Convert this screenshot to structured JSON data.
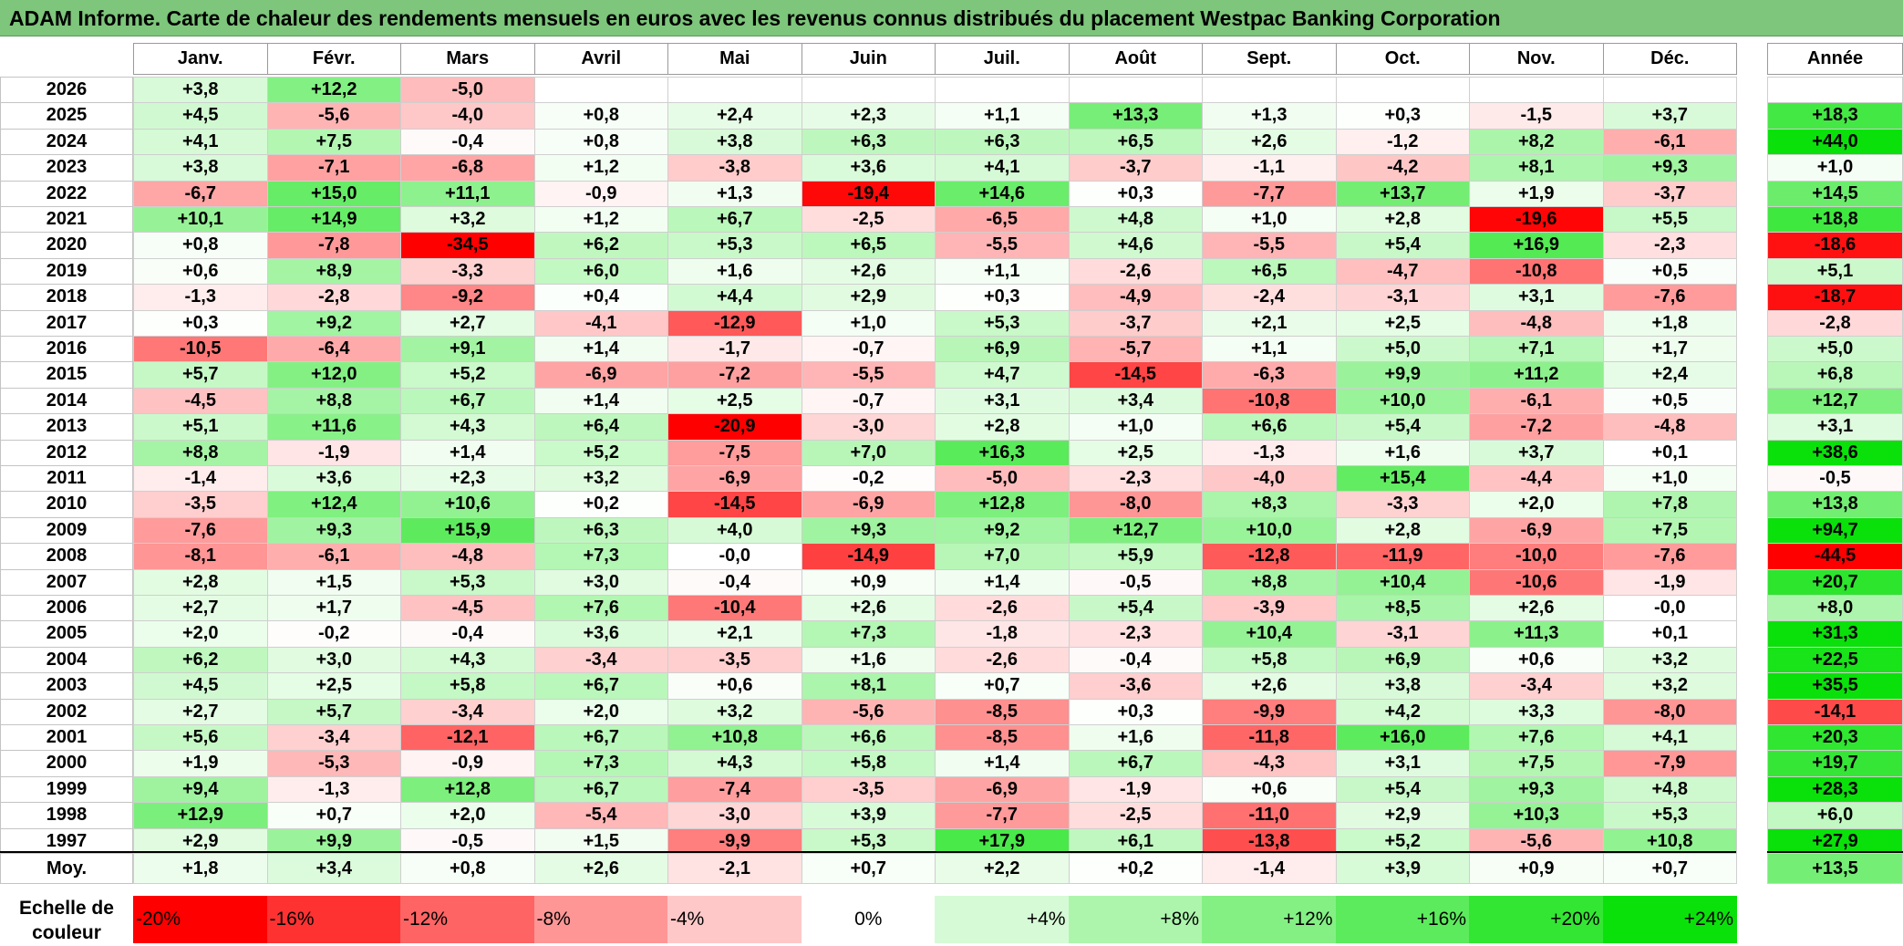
{
  "title": "ADAM Informe. Carte de chaleur des rendements mensuels en euros avec les revenus connus distribués du placement Westpac Banking Corporation",
  "chart_data": {
    "type": "heatmap",
    "title": "ADAM Informe. Carte de chaleur des rendements mensuels en euros avec les revenus connus distribués du placement Westpac Banking Corporation",
    "months": [
      "Janv.",
      "Févr.",
      "Mars",
      "Avril",
      "Mai",
      "Juin",
      "Juil.",
      "Août",
      "Sept.",
      "Oct.",
      "Nov.",
      "Déc."
    ],
    "year_header": "Année",
    "years": [
      "2026",
      "2025",
      "2024",
      "2023",
      "2022",
      "2021",
      "2020",
      "2019",
      "2018",
      "2017",
      "2016",
      "2015",
      "2014",
      "2013",
      "2012",
      "2011",
      "2010",
      "2009",
      "2008",
      "2007",
      "2006",
      "2005",
      "2004",
      "2003",
      "2002",
      "2001",
      "2000",
      "1999",
      "1998",
      "1997"
    ],
    "values": [
      [
        "+3,8",
        "+12,2",
        "-5,0",
        "",
        "",
        "",
        "",
        "",
        "",
        "",
        "",
        ""
      ],
      [
        "+4,5",
        "-5,6",
        "-4,0",
        "+0,8",
        "+2,4",
        "+2,3",
        "+1,1",
        "+13,3",
        "+1,3",
        "+0,3",
        "-1,5",
        "+3,7"
      ],
      [
        "+4,1",
        "+7,5",
        "-0,4",
        "+0,8",
        "+3,8",
        "+6,3",
        "+6,3",
        "+6,5",
        "+2,6",
        "-1,2",
        "+8,2",
        "-6,1"
      ],
      [
        "+3,8",
        "-7,1",
        "-6,8",
        "+1,2",
        "-3,8",
        "+3,6",
        "+4,1",
        "-3,7",
        "-1,1",
        "-4,2",
        "+8,1",
        "+9,3"
      ],
      [
        "-6,7",
        "+15,0",
        "+11,1",
        "-0,9",
        "+1,3",
        "-19,4",
        "+14,6",
        "+0,3",
        "-7,7",
        "+13,7",
        "+1,9",
        "-3,7"
      ],
      [
        "+10,1",
        "+14,9",
        "+3,2",
        "+1,2",
        "+6,7",
        "-2,5",
        "-6,5",
        "+4,8",
        "+1,0",
        "+2,8",
        "-19,6",
        "+5,5"
      ],
      [
        "+0,8",
        "-7,8",
        "-34,5",
        "+6,2",
        "+5,3",
        "+6,5",
        "-5,5",
        "+4,6",
        "-5,5",
        "+5,4",
        "+16,9",
        "-2,3"
      ],
      [
        "+0,6",
        "+8,9",
        "-3,3",
        "+6,0",
        "+1,6",
        "+2,6",
        "+1,1",
        "-2,6",
        "+6,5",
        "-4,7",
        "-10,8",
        "+0,5"
      ],
      [
        "-1,3",
        "-2,8",
        "-9,2",
        "+0,4",
        "+4,4",
        "+2,9",
        "+0,3",
        "-4,9",
        "-2,4",
        "-3,1",
        "+3,1",
        "-7,6"
      ],
      [
        "+0,3",
        "+9,2",
        "+2,7",
        "-4,1",
        "-12,9",
        "+1,0",
        "+5,3",
        "-3,7",
        "+2,1",
        "+2,5",
        "-4,8",
        "+1,8"
      ],
      [
        "-10,5",
        "-6,4",
        "+9,1",
        "+1,4",
        "-1,7",
        "-0,7",
        "+6,9",
        "-5,7",
        "+1,1",
        "+5,0",
        "+7,1",
        "+1,7"
      ],
      [
        "+5,7",
        "+12,0",
        "+5,2",
        "-6,9",
        "-7,2",
        "-5,5",
        "+4,7",
        "-14,5",
        "-6,3",
        "+9,9",
        "+11,2",
        "+2,4"
      ],
      [
        "-4,5",
        "+8,8",
        "+6,7",
        "+1,4",
        "+2,5",
        "-0,7",
        "+3,1",
        "+3,4",
        "-10,8",
        "+10,0",
        "-6,1",
        "+0,5"
      ],
      [
        "+5,1",
        "+11,6",
        "+4,3",
        "+6,4",
        "-20,9",
        "-3,0",
        "+2,8",
        "+1,0",
        "+6,6",
        "+5,4",
        "-7,2",
        "-4,8"
      ],
      [
        "+8,8",
        "-1,9",
        "+1,4",
        "+5,2",
        "-7,5",
        "+7,0",
        "+16,3",
        "+2,5",
        "-1,3",
        "+1,6",
        "+3,7",
        "+0,1"
      ],
      [
        "-1,4",
        "+3,6",
        "+2,3",
        "+3,2",
        "-6,9",
        "-0,2",
        "-5,0",
        "-2,3",
        "-4,0",
        "+15,4",
        "-4,4",
        "+1,0"
      ],
      [
        "-3,5",
        "+12,4",
        "+10,6",
        "+0,2",
        "-14,5",
        "-6,9",
        "+12,8",
        "-8,0",
        "+8,3",
        "-3,3",
        "+2,0",
        "+7,8"
      ],
      [
        "-7,6",
        "+9,3",
        "+15,9",
        "+6,3",
        "+4,0",
        "+9,3",
        "+9,2",
        "+12,7",
        "+10,0",
        "+2,8",
        "-6,9",
        "+7,5"
      ],
      [
        "-8,1",
        "-6,1",
        "-4,8",
        "+7,3",
        "-0,0",
        "-14,9",
        "+7,0",
        "+5,9",
        "-12,8",
        "-11,9",
        "-10,0",
        "-7,6"
      ],
      [
        "+2,8",
        "+1,5",
        "+5,3",
        "+3,0",
        "-0,4",
        "+0,9",
        "+1,4",
        "-0,5",
        "+8,8",
        "+10,4",
        "-10,6",
        "-1,9"
      ],
      [
        "+2,7",
        "+1,7",
        "-4,5",
        "+7,6",
        "-10,4",
        "+2,6",
        "-2,6",
        "+5,4",
        "-3,9",
        "+8,5",
        "+2,6",
        "-0,0"
      ],
      [
        "+2,0",
        "-0,2",
        "-0,4",
        "+3,6",
        "+2,1",
        "+7,3",
        "-1,8",
        "-2,3",
        "+10,4",
        "-3,1",
        "+11,3",
        "+0,1"
      ],
      [
        "+6,2",
        "+3,0",
        "+4,3",
        "-3,4",
        "-3,5",
        "+1,6",
        "-2,6",
        "-0,4",
        "+5,8",
        "+6,9",
        "+0,6",
        "+3,2"
      ],
      [
        "+4,5",
        "+2,5",
        "+5,8",
        "+6,7",
        "+0,6",
        "+8,1",
        "+0,7",
        "-3,6",
        "+2,6",
        "+3,8",
        "-3,4",
        "+3,2"
      ],
      [
        "+2,7",
        "+5,7",
        "-3,4",
        "+2,0",
        "+3,2",
        "-5,6",
        "-8,5",
        "+0,3",
        "-9,9",
        "+4,2",
        "+3,3",
        "-8,0"
      ],
      [
        "+5,6",
        "-3,4",
        "-12,1",
        "+6,7",
        "+10,8",
        "+6,6",
        "-8,5",
        "+1,6",
        "-11,8",
        "+16,0",
        "+7,6",
        "+4,1"
      ],
      [
        "+1,9",
        "-5,3",
        "-0,9",
        "+7,3",
        "+4,3",
        "+5,8",
        "+1,4",
        "+6,7",
        "-4,3",
        "+3,1",
        "+7,5",
        "-7,9"
      ],
      [
        "+9,4",
        "-1,3",
        "+12,8",
        "+6,7",
        "-7,4",
        "-3,5",
        "-6,9",
        "-1,9",
        "+0,6",
        "+5,4",
        "+9,3",
        "+4,8"
      ],
      [
        "+12,9",
        "+0,7",
        "+2,0",
        "-5,4",
        "-3,0",
        "+3,9",
        "-7,7",
        "-2,5",
        "-11,0",
        "+2,9",
        "+10,3",
        "+5,3"
      ],
      [
        "+2,9",
        "+9,9",
        "-0,5",
        "+1,5",
        "-9,9",
        "+5,3",
        "+17,9",
        "+6,1",
        "-13,8",
        "+5,2",
        "-5,6",
        "+10,8"
      ]
    ],
    "annual": [
      "",
      "+18,3",
      "+44,0",
      "+1,0",
      "+14,5",
      "+18,8",
      "-18,6",
      "+5,1",
      "-18,7",
      "-2,8",
      "+5,0",
      "+6,8",
      "+12,7",
      "+3,1",
      "+38,6",
      "-0,5",
      "+13,8",
      "+94,7",
      "-44,5",
      "+20,7",
      "+8,0",
      "+31,3",
      "+22,5",
      "+35,5",
      "-14,1",
      "+20,3",
      "+19,7",
      "+28,3",
      "+6,0",
      "+27,9"
    ],
    "average_label": "Moy.",
    "averages": [
      "+1,8",
      "+3,4",
      "+0,8",
      "+2,6",
      "-2,1",
      "+0,7",
      "+2,2",
      "+0,2",
      "-1,4",
      "+3,9",
      "+0,9",
      "+0,7"
    ],
    "average_annual": "+13,5",
    "scale_title": "Echelle de couleur",
    "scale": [
      {
        "label": "-20%",
        "value": -20,
        "color": "#ff0000"
      },
      {
        "label": "-16%",
        "value": -16,
        "color": "#ff3232"
      },
      {
        "label": "-12%",
        "value": -12,
        "color": "#ff6464"
      },
      {
        "label": "-8%",
        "value": -8,
        "color": "#ff9696"
      },
      {
        "label": "-4%",
        "value": -4,
        "color": "#ffc8c8"
      },
      {
        "label": "0%",
        "value": 0,
        "color": "#ffffff"
      },
      {
        "label": "+4%",
        "value": 4,
        "color": "#d6fad6"
      },
      {
        "label": "+8%",
        "value": 8,
        "color": "#adf5ad"
      },
      {
        "label": "+12%",
        "value": 12,
        "color": "#84f084"
      },
      {
        "label": "+16%",
        "value": 16,
        "color": "#5ceb5c"
      },
      {
        "label": "+20%",
        "value": 20,
        "color": "#33e633"
      },
      {
        "label": "+24%",
        "value": 24,
        "color": "#0ae10a"
      }
    ]
  }
}
